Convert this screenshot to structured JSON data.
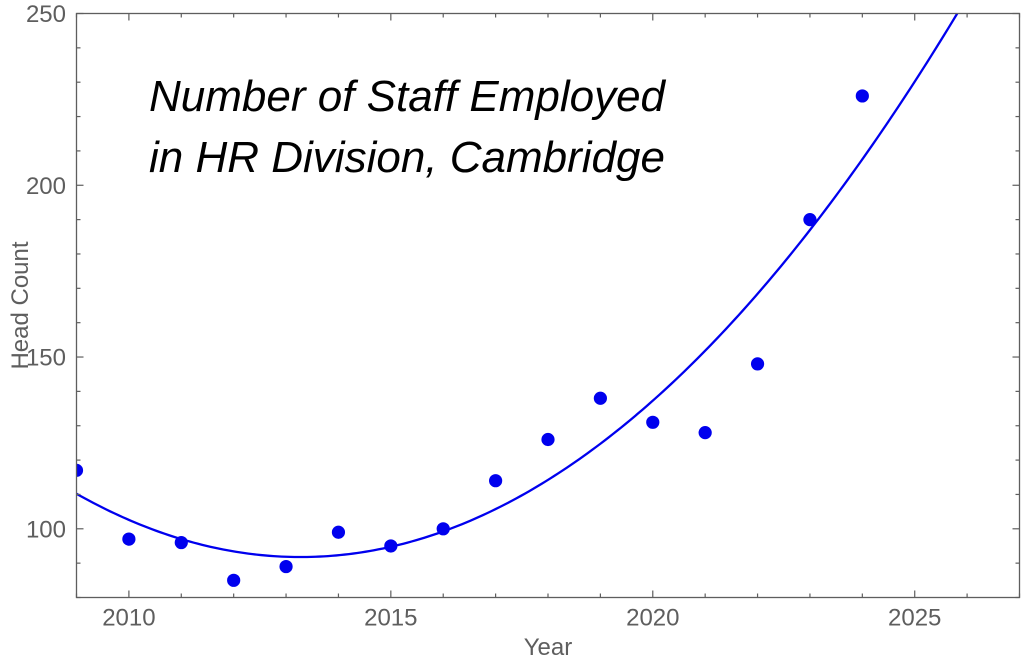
{
  "chart_data": {
    "type": "scatter",
    "title": "Number of Staff Employed in HR Division, Cambridge",
    "title_lines": [
      "Number of Staff Employed",
      "in HR Division, Cambridge"
    ],
    "xlabel": "Year",
    "ylabel": "Head Count",
    "x": [
      2009,
      2010,
      2011,
      2012,
      2013,
      2014,
      2015,
      2016,
      2017,
      2018,
      2019,
      2020,
      2021,
      2022,
      2023,
      2024
    ],
    "values": [
      117,
      97,
      96,
      85,
      89,
      99,
      95,
      100,
      114,
      126,
      138,
      131,
      128,
      148,
      190,
      226
    ],
    "series": [
      {
        "name": "head-count-points",
        "type": "scatter"
      },
      {
        "name": "quadratic-fit-curve",
        "type": "line",
        "fit": {
          "model": "quadratic",
          "t": "year-2009",
          "coefficients": {
            "a": 1.007,
            "b": -8.614,
            "c": 110.2
          }
        }
      }
    ],
    "xlim": [
      2009,
      2027
    ],
    "ylim": [
      80,
      250
    ],
    "x_major_ticks": [
      2010,
      2015,
      2020,
      2025
    ],
    "x_minor_tick_step": 1,
    "y_major_ticks": [
      100,
      150,
      200,
      250
    ],
    "y_minor_tick_step": 10,
    "grid": false,
    "legend": "none",
    "frame": true
  },
  "style": {
    "point_color": "#0000EE",
    "curve_color": "#0000EE",
    "frame_color": "#5E5E5E",
    "tick_color": "#5E5E5E",
    "label_color": "#5E5E5E",
    "title_color": "#000000",
    "background": "#FFFFFF"
  }
}
